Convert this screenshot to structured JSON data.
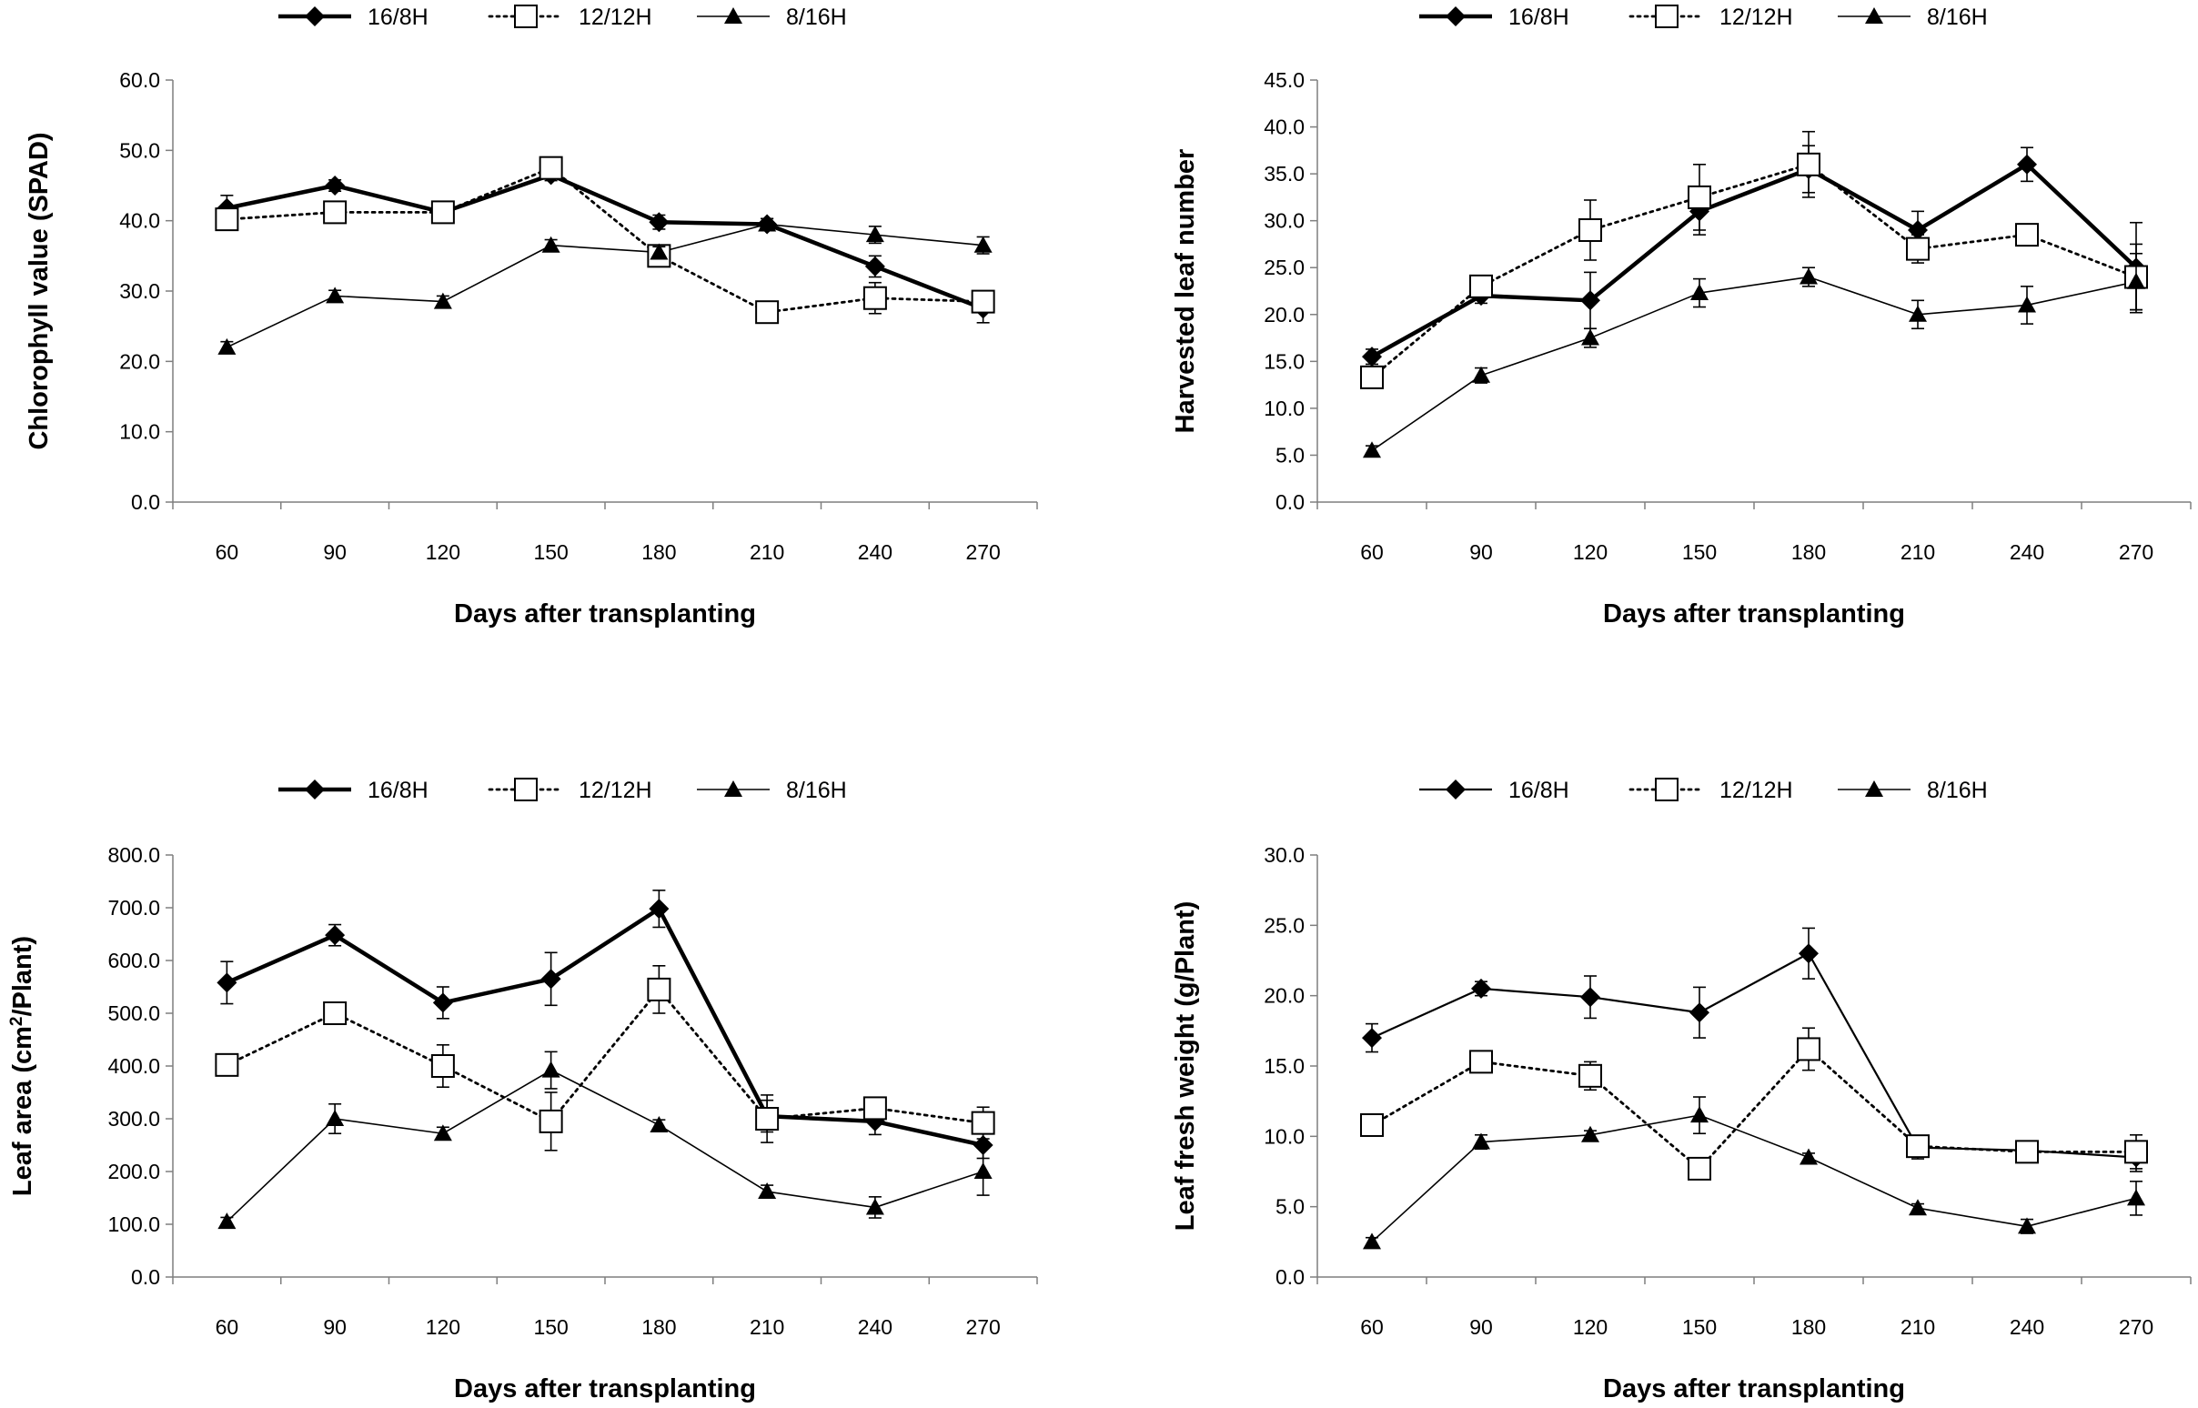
{
  "chart_data": [
    {
      "type": "line",
      "xlabel": "Days after transplanting",
      "ylabel": "Chlorophyll value (SPAD)",
      "ylim": [
        0,
        60
      ],
      "ytick_step": 10,
      "categories": [
        "60",
        "90",
        "120",
        "150",
        "180",
        "210",
        "240",
        "270"
      ],
      "grid": false,
      "legend_position": "top",
      "series": [
        {
          "name": "16/8H",
          "marker": "diamond",
          "line": "thick-solid",
          "values": [
            41.8,
            45.0,
            41.2,
            46.5,
            39.8,
            39.5,
            33.5,
            27.5
          ],
          "errors": [
            1.8,
            0.8,
            0.8,
            0.8,
            1.0,
            0.8,
            1.5,
            2.0
          ]
        },
        {
          "name": "12/12H",
          "marker": "open-square",
          "line": "dotted",
          "values": [
            40.2,
            41.2,
            41.2,
            47.5,
            35.0,
            27.0,
            29.0,
            28.5
          ],
          "errors": [
            1.0,
            0.8,
            1.0,
            1.0,
            1.0,
            1.0,
            2.2,
            1.2
          ]
        },
        {
          "name": "8/16H",
          "marker": "triangle",
          "line": "thin-solid",
          "values": [
            22.0,
            29.3,
            28.5,
            36.5,
            35.5,
            39.5,
            38.0,
            36.5
          ],
          "errors": [
            0.8,
            0.8,
            0.8,
            0.8,
            0.8,
            0.8,
            1.2,
            1.2
          ]
        }
      ]
    },
    {
      "type": "line",
      "xlabel": "Days after transplanting",
      "ylabel": "Harvested leaf number",
      "ylim": [
        0,
        45
      ],
      "ytick_step": 5,
      "categories": [
        "60",
        "90",
        "120",
        "150",
        "180",
        "210",
        "240",
        "270"
      ],
      "grid": false,
      "legend_position": "top",
      "series": [
        {
          "name": "16/8H",
          "marker": "diamond",
          "line": "thick-solid",
          "values": [
            15.5,
            22.0,
            21.5,
            31.0,
            35.5,
            29.0,
            36.0,
            25.0
          ],
          "errors": [
            0.8,
            0.8,
            3.0,
            2.5,
            2.5,
            2.0,
            1.8,
            4.8
          ]
        },
        {
          "name": "12/12H",
          "marker": "open-square",
          "line": "dotted",
          "values": [
            13.3,
            23.0,
            29.0,
            32.5,
            36.0,
            27.0,
            28.5,
            24.0
          ],
          "errors": [
            0.8,
            0.8,
            3.2,
            3.5,
            3.5,
            1.5,
            1.0,
            3.5
          ]
        },
        {
          "name": "8/16H",
          "marker": "triangle",
          "line": "thin-solid",
          "values": [
            5.5,
            13.5,
            17.5,
            22.3,
            24.0,
            20.0,
            21.0,
            23.5
          ],
          "errors": [
            0.5,
            0.8,
            1.0,
            1.5,
            1.0,
            1.5,
            2.0,
            3.0
          ]
        }
      ]
    },
    {
      "type": "line",
      "xlabel": "Days after transplanting",
      "ylabel": "Leaf area (cm",
      "ylabel_sup": "2",
      "ylabel_tail": "/Plant)",
      "ylim": [
        0,
        800
      ],
      "ytick_step": 100,
      "categories": [
        "60",
        "90",
        "120",
        "150",
        "180",
        "210",
        "240",
        "270"
      ],
      "grid": false,
      "legend_position": "top",
      "series": [
        {
          "name": "16/8H",
          "marker": "diamond",
          "line": "thick-solid",
          "values": [
            558,
            648,
            520,
            565,
            698,
            305,
            295,
            250
          ],
          "errors": [
            40,
            20,
            30,
            50,
            35,
            30,
            25,
            25
          ]
        },
        {
          "name": "12/12H",
          "marker": "open-square",
          "line": "dotted",
          "values": [
            402,
            500,
            400,
            295,
            545,
            300,
            320,
            292
          ],
          "errors": [
            10,
            15,
            40,
            55,
            45,
            45,
            15,
            30
          ]
        },
        {
          "name": "8/16H",
          "marker": "triangle",
          "line": "thin-solid",
          "values": [
            105,
            300,
            272,
            392,
            288,
            162,
            132,
            200
          ],
          "errors": [
            8,
            28,
            12,
            35,
            10,
            12,
            20,
            45
          ]
        }
      ]
    },
    {
      "type": "line",
      "xlabel": "Days after transplanting",
      "ylabel": "Leaf fresh weight (g/Plant)",
      "ylim": [
        0,
        30
      ],
      "ytick_step": 5,
      "categories": [
        "60",
        "90",
        "120",
        "150",
        "180",
        "210",
        "240",
        "270"
      ],
      "grid": false,
      "legend_position": "top",
      "series": [
        {
          "name": "16/8H",
          "marker": "diamond",
          "line": "solid",
          "values": [
            17.0,
            20.5,
            19.9,
            18.8,
            23.0,
            9.2,
            9.0,
            8.5
          ],
          "errors": [
            1.0,
            0.5,
            1.5,
            1.8,
            1.8,
            0.8,
            0.3,
            1.0
          ]
        },
        {
          "name": "12/12H",
          "marker": "open-square",
          "line": "dotted",
          "values": [
            10.8,
            15.3,
            14.3,
            7.7,
            16.2,
            9.3,
            8.9,
            8.9
          ],
          "errors": [
            0.3,
            0.5,
            1.0,
            0.3,
            1.5,
            0.5,
            0.3,
            1.2
          ]
        },
        {
          "name": "8/16H",
          "marker": "triangle",
          "line": "thin-solid",
          "values": [
            2.5,
            9.6,
            10.1,
            11.5,
            8.5,
            4.9,
            3.6,
            5.6
          ],
          "errors": [
            0.3,
            0.5,
            0.3,
            1.3,
            0.3,
            0.3,
            0.5,
            1.2
          ]
        }
      ]
    }
  ]
}
